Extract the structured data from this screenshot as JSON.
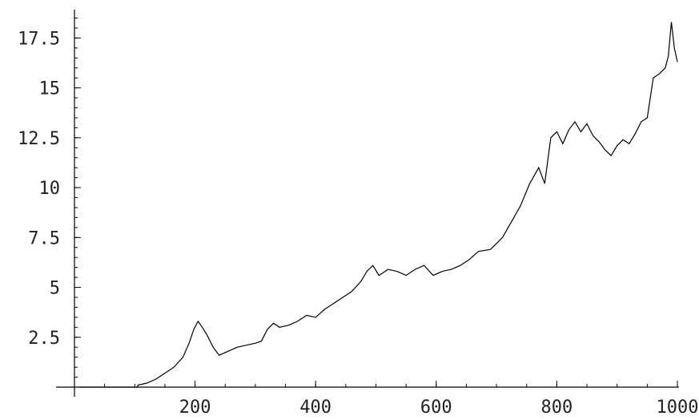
{
  "chart_data": {
    "type": "line",
    "title": "",
    "xlabel": "",
    "ylabel": "",
    "xlim": [
      0,
      1000
    ],
    "ylim": [
      0,
      18.6
    ],
    "grid": false,
    "x_ticks": [
      {
        "value": 200,
        "label": "200"
      },
      {
        "value": 400,
        "label": "400"
      },
      {
        "value": 600,
        "label": "600"
      },
      {
        "value": 800,
        "label": "800"
      },
      {
        "value": 1000,
        "label": "1000"
      }
    ],
    "y_ticks": [
      {
        "value": 2.5,
        "label": "2.5"
      },
      {
        "value": 5,
        "label": "5"
      },
      {
        "value": 7.5,
        "label": "7.5"
      },
      {
        "value": 10,
        "label": "10"
      },
      {
        "value": 12.5,
        "label": "12.5"
      },
      {
        "value": 15,
        "label": "15"
      },
      {
        "value": 17.5,
        "label": "17.5"
      }
    ],
    "x_minor_step": 50,
    "y_minor_step": 0.5,
    "line_color": "#000000",
    "axis_color": "#000000",
    "series": [
      {
        "x": [
          105,
          120,
          135,
          150,
          165,
          180,
          190,
          198,
          205,
          212,
          220,
          230,
          240,
          255,
          270,
          285,
          300,
          310,
          320,
          330,
          340,
          355,
          370,
          385,
          400,
          415,
          430,
          445,
          460,
          475,
          485,
          495,
          505,
          520,
          535,
          550,
          565,
          580,
          595,
          610,
          625,
          640,
          655,
          670,
          690,
          710,
          725,
          740,
          755,
          770,
          780,
          790,
          800,
          810,
          820,
          830,
          840,
          850,
          860,
          870,
          880,
          890,
          900,
          910,
          920,
          930,
          940,
          950,
          960,
          970,
          980,
          985,
          990,
          995,
          1000
        ],
        "y": [
          0.1,
          0.2,
          0.4,
          0.7,
          1.0,
          1.5,
          2.2,
          2.9,
          3.3,
          3.0,
          2.6,
          2.0,
          1.6,
          1.8,
          2.0,
          2.1,
          2.2,
          2.3,
          2.9,
          3.2,
          3.0,
          3.1,
          3.3,
          3.6,
          3.5,
          3.9,
          4.2,
          4.5,
          4.8,
          5.3,
          5.8,
          6.1,
          5.6,
          5.9,
          5.8,
          5.6,
          5.9,
          6.1,
          5.6,
          5.8,
          5.9,
          6.1,
          6.4,
          6.8,
          6.9,
          7.5,
          8.3,
          9.1,
          10.2,
          11.0,
          10.2,
          12.5,
          12.8,
          12.2,
          12.9,
          13.3,
          12.8,
          13.2,
          12.6,
          12.3,
          11.9,
          11.6,
          12.1,
          12.4,
          12.2,
          12.7,
          13.3,
          13.5,
          15.5,
          15.7,
          16.0,
          16.6,
          18.3,
          17.0,
          16.3
        ]
      }
    ]
  }
}
